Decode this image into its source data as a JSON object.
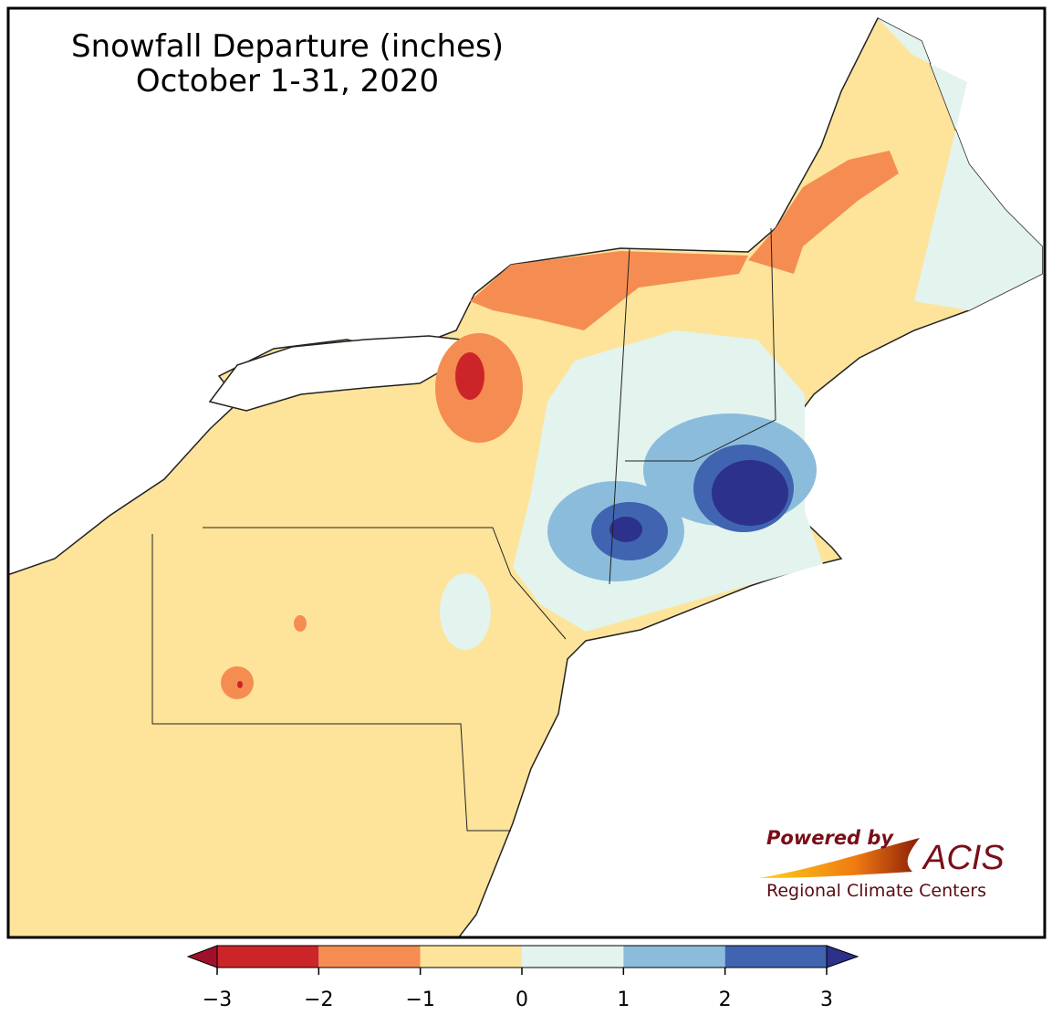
{
  "title": "Snowfall Departure (inches)",
  "subtitle": "October 1-31, 2020",
  "colorbar": {
    "bounds": [
      -3,
      -2,
      -1,
      0,
      1,
      2,
      3
    ],
    "colors": [
      "#cc2529",
      "#f58d52",
      "#fde49a",
      "#e3f3ee",
      "#8cbcdb",
      "#4064b0"
    ],
    "under_color": "#a0102a",
    "over_color": "#2c318c",
    "ticks": [
      {
        "value": -3,
        "label": "−3"
      },
      {
        "value": -2,
        "label": "−2"
      },
      {
        "value": -1,
        "label": "−1"
      },
      0,
      1,
      2,
      3
    ]
  },
  "logo": {
    "powered_by": "Powered by",
    "name": "ACIS",
    "tagline": "Regional Climate Centers"
  }
}
